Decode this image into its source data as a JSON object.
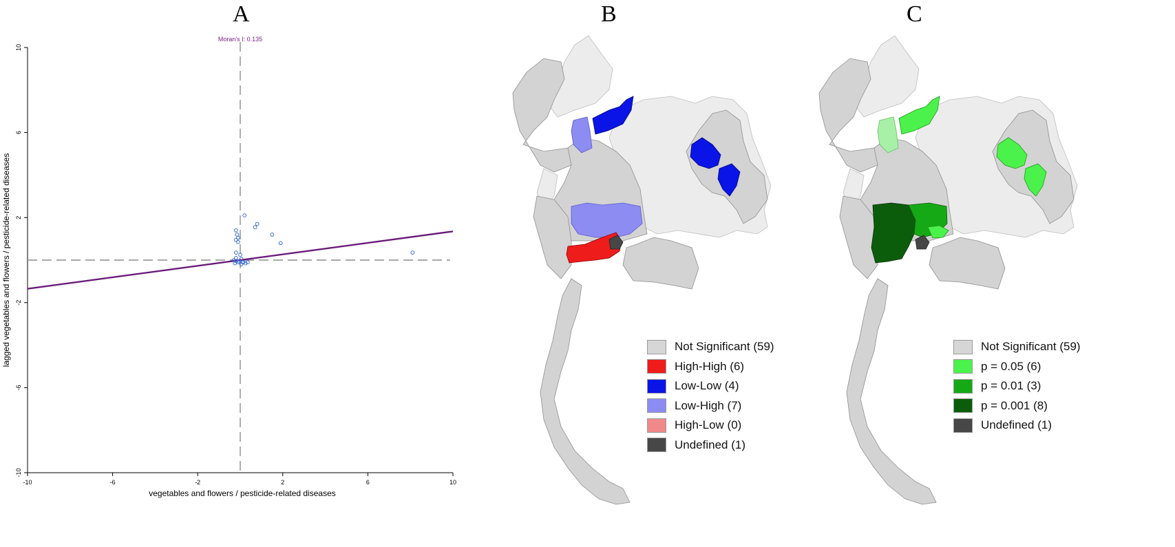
{
  "panels": {
    "a": "A",
    "b": "B",
    "c": "C"
  },
  "chart_data": {
    "type": "scatter",
    "title": "",
    "xlabel": "vegetables and flowers / pesticide-related diseases",
    "ylabel": "lagged vegetables and flowers / pesticide-related diseases",
    "xlim": [
      -10,
      10
    ],
    "ylim": [
      -10,
      10
    ],
    "x_ticks": [
      -10,
      -6,
      -2,
      2,
      6,
      10
    ],
    "y_ticks": [
      -10,
      -6,
      -2,
      2,
      6,
      10
    ],
    "annotation": "Moran's I: 0.135",
    "regression_slope": 0.135,
    "grid": false,
    "colors": {
      "points": "#3a6fd8",
      "regression": "#6a1b7a",
      "reference": "#8c8c8c",
      "annotation": "#7b1f85"
    },
    "points": [
      [
        -0.2,
        1.4
      ],
      [
        -0.15,
        1.2
      ],
      [
        -0.1,
        1.05
      ],
      [
        -0.2,
        0.95
      ],
      [
        -0.1,
        0.85
      ],
      [
        0.2,
        2.1
      ],
      [
        0.7,
        1.55
      ],
      [
        0.8,
        1.7
      ],
      [
        1.5,
        1.2
      ],
      [
        1.9,
        0.8
      ],
      [
        -0.2,
        0.35
      ],
      [
        0.0,
        0.25
      ],
      [
        8.1,
        0.35
      ],
      [
        -0.3,
        0.0
      ],
      [
        -0.2,
        -0.05
      ],
      [
        -0.1,
        -0.1
      ],
      [
        0.1,
        -0.1
      ],
      [
        -0.25,
        -0.15
      ],
      [
        0.05,
        0.05
      ],
      [
        0.15,
        -0.1
      ],
      [
        -0.2,
        0.1
      ],
      [
        0.05,
        -0.2
      ],
      [
        0.25,
        -0.15
      ],
      [
        0.35,
        -0.1
      ],
      [
        -0.05,
        -0.05
      ]
    ]
  },
  "legend_b": [
    {
      "label": "Not Significant (59)",
      "color": "#d6d6d6"
    },
    {
      "label": "High-High (6)",
      "color": "#ef1c1c"
    },
    {
      "label": "Low-Low (4)",
      "color": "#0a14e6"
    },
    {
      "label": "Low-High (7)",
      "color": "#8c8cf2"
    },
    {
      "label": "High-Low (0)",
      "color": "#f08a8a"
    },
    {
      "label": "Undefined (1)",
      "color": "#474747"
    }
  ],
  "legend_c": [
    {
      "label": "Not Significant (59)",
      "color": "#d6d6d6"
    },
    {
      "label": "p = 0.05 (6)",
      "color": "#4cf24c"
    },
    {
      "label": "p = 0.01 (3)",
      "color": "#16a916"
    },
    {
      "label": "p = 0.001 (8)",
      "color": "#0b5d0b"
    },
    {
      "label": "Undefined (1)",
      "color": "#474747"
    }
  ],
  "map_colors": {
    "base": "#d3d3d3",
    "light": "#ececec",
    "stroke": "#8f8f8f",
    "b_hh": "#ef1c1c",
    "b_ll": "#0a14e6",
    "b_lh": "#8c8cf2",
    "b_undef": "#474747",
    "c_p05": "#4cf24c",
    "c_p05_light": "#a8f0a8",
    "c_p01": "#16a916",
    "c_p001": "#0b5d0b",
    "c_undef": "#474747"
  }
}
